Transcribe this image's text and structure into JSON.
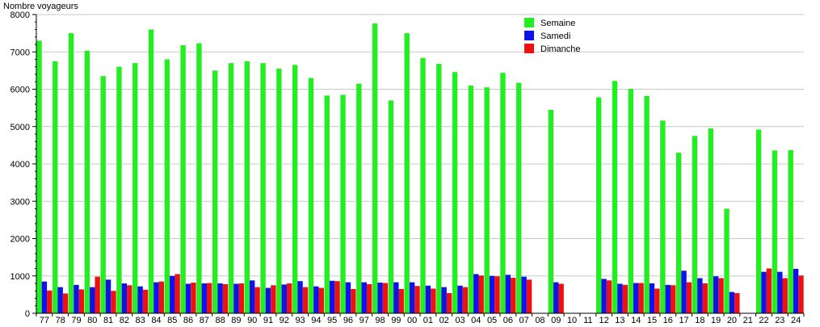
{
  "chart_data": {
    "type": "bar",
    "title": "",
    "ylabel": "Nombre voyageurs",
    "xlabel": "",
    "ylim": [
      0,
      8000
    ],
    "yticks": [
      0,
      1000,
      2000,
      3000,
      4000,
      5000,
      6000,
      7000,
      8000
    ],
    "grid": true,
    "legend_position": "top-right",
    "categories": [
      "77",
      "78",
      "79",
      "80",
      "81",
      "82",
      "83",
      "84",
      "85",
      "86",
      "87",
      "88",
      "89",
      "90",
      "91",
      "92",
      "93",
      "94",
      "95",
      "96",
      "97",
      "98",
      "99",
      "00",
      "01",
      "02",
      "03",
      "04",
      "05",
      "06",
      "07",
      "08",
      "09",
      "10",
      "11",
      "12",
      "13",
      "14",
      "15",
      "16",
      "17",
      "18",
      "19",
      "20",
      "21",
      "22",
      "23",
      "24"
    ],
    "series": [
      {
        "name": "Semaine",
        "color": "#22ee22",
        "values": [
          7300,
          6750,
          7500,
          7030,
          6350,
          6600,
          6700,
          7600,
          6800,
          7180,
          7230,
          6500,
          6700,
          6750,
          6700,
          6550,
          6650,
          6300,
          5830,
          5850,
          6150,
          7760,
          5700,
          7500,
          6840,
          6680,
          6460,
          6100,
          6050,
          6440,
          6170,
          0,
          5450,
          0,
          0,
          5780,
          6220,
          6010,
          5820,
          5160,
          4300,
          4750,
          4950,
          2800,
          0,
          4920,
          4360,
          4370
        ]
      },
      {
        "name": "Samedi",
        "color": "#1111ee",
        "values": [
          850,
          700,
          760,
          700,
          900,
          800,
          720,
          830,
          1000,
          790,
          800,
          800,
          790,
          880,
          680,
          770,
          860,
          720,
          870,
          830,
          830,
          820,
          830,
          830,
          740,
          700,
          740,
          1050,
          1000,
          1030,
          980,
          0,
          830,
          0,
          0,
          920,
          790,
          810,
          800,
          760,
          1140,
          940,
          990,
          570,
          0,
          1110,
          1110,
          1190
        ]
      },
      {
        "name": "Dimanche",
        "color": "#ee1111",
        "values": [
          610,
          530,
          640,
          980,
          600,
          750,
          630,
          850,
          1050,
          820,
          810,
          780,
          800,
          700,
          750,
          800,
          700,
          680,
          860,
          650,
          780,
          810,
          650,
          730,
          660,
          540,
          700,
          1010,
          990,
          950,
          900,
          0,
          790,
          0,
          0,
          880,
          760,
          810,
          660,
          750,
          830,
          800,
          940,
          540,
          0,
          1200,
          940,
          1010
        ]
      }
    ]
  }
}
